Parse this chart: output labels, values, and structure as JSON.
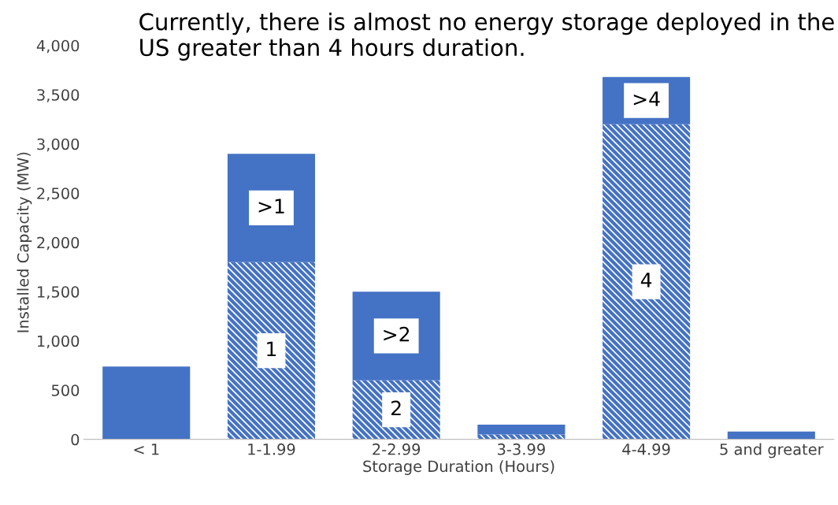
{
  "chart_data": {
    "type": "bar",
    "title": "Currently, there is almost no energy storage deployed in the US greater than 4 hours duration.",
    "xlabel": "Storage Duration (Hours)",
    "ylabel": "Installed Capacity (MW)",
    "categories": [
      "< 1",
      "1-1.99",
      "2-2.99",
      "3-3.99",
      "4-4.99",
      "5 and greater"
    ],
    "stacked": true,
    "series": [
      {
        "color": "#4472c4",
        "values": [
          null,
          1800,
          600,
          50,
          3200,
          null
        ]
      },
      {
        "color": "#4472c4",
        "values": [
          740,
          1100,
          900,
          100,
          480,
          80
        ]
      }
    ],
    "ylim": [
      0,
      4000
    ],
    "yticks": [
      {
        "value": 0,
        "label": "0"
      },
      {
        "value": 500,
        "label": "500"
      },
      {
        "value": 1000,
        "label": "1,000"
      },
      {
        "value": 1500,
        "label": "1,500"
      },
      {
        "value": 2000,
        "label": "2,000"
      },
      {
        "value": 2500,
        "label": "2,500"
      },
      {
        "value": 3000,
        "label": "3,000"
      },
      {
        "value": 3500,
        "label": "3,500"
      },
      {
        "value": 4000,
        "label": "4,000"
      }
    ],
    "grid": false,
    "legend": false,
    "annotations": [
      ">1",
      "1",
      ">2",
      "2",
      ">4",
      "4"
    ]
  }
}
